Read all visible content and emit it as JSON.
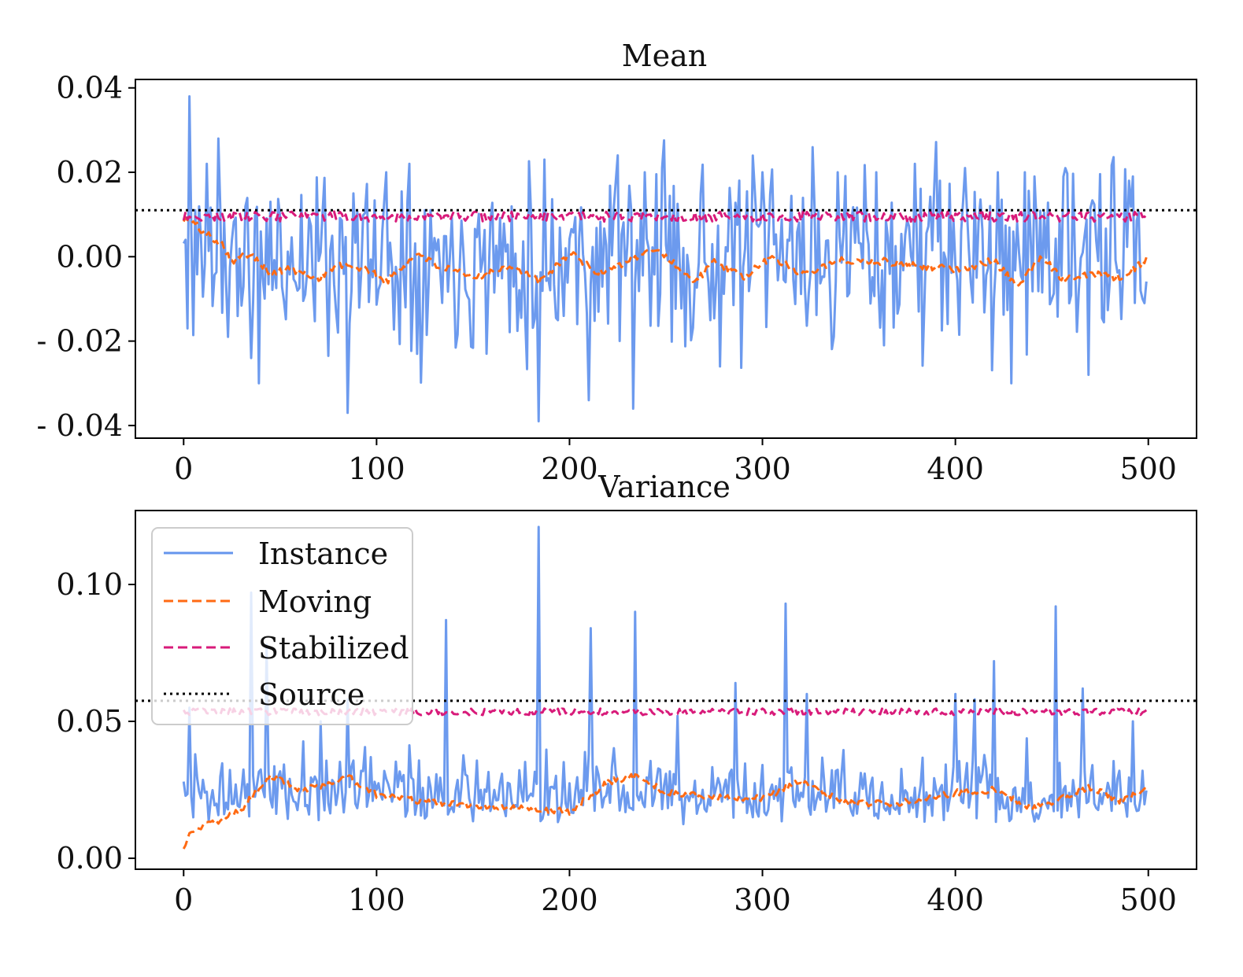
{
  "colors": {
    "instance": "#6495ed",
    "moving": "#ff6a13",
    "stabilized": "#d81b7a",
    "source": "#000000"
  },
  "legend": {
    "instance": "Instance",
    "moving": "Moving",
    "stabilized": "Stabilized",
    "source": "Source",
    "placement": "upper-left of Variance panel"
  },
  "chart_data": [
    {
      "type": "line",
      "title": "Mean",
      "xlim": [
        -25,
        525
      ],
      "ylim": [
        -0.043,
        0.042
      ],
      "xticks": [
        0,
        100,
        200,
        300,
        400,
        500
      ],
      "xtick_labels": [
        "0",
        "100",
        "200",
        "300",
        "400",
        "500"
      ],
      "yticks": [
        0.04,
        0.02,
        0.0,
        -0.02,
        -0.04
      ],
      "ytick_labels": [
        "0.04",
        "0.02",
        "0.00",
        "- 0.02",
        "- 0.04"
      ],
      "x_points": 500,
      "series": [
        {
          "name": "Instance",
          "style": "solid",
          "base": 0.0,
          "noise": 0.0105,
          "seed": 11,
          "spikes": [
            [
              1,
              0.004
            ],
            [
              2,
              -0.017
            ],
            [
              3,
              0.038
            ],
            [
              6,
              0.011
            ],
            [
              12,
              0.022
            ],
            [
              18,
              0.028
            ],
            [
              23,
              -0.019
            ],
            [
              35,
              -0.024
            ],
            [
              39,
              -0.03
            ],
            [
              85,
              -0.037
            ],
            [
              88,
              0.015
            ],
            [
              105,
              0.02
            ],
            [
              117,
              0.022
            ],
            [
              184,
              -0.039
            ],
            [
              187,
              0.023
            ],
            [
              210,
              -0.034
            ],
            [
              224,
              0.018
            ],
            [
              225,
              0.024
            ],
            [
              233,
              -0.036
            ],
            [
              239,
              0.02
            ],
            [
              248,
              0.021
            ],
            [
              278,
              -0.026
            ],
            [
              300,
              0.02
            ],
            [
              339,
              0.02
            ],
            [
              359,
              0.02
            ],
            [
              363,
              -0.021
            ],
            [
              379,
              0.022
            ],
            [
              392,
              0.018
            ],
            [
              405,
              0.021
            ],
            [
              422,
              0.02
            ],
            [
              429,
              -0.03
            ],
            [
              436,
              0.02
            ],
            [
              441,
              0.019
            ],
            [
              457,
              0.021
            ],
            [
              469,
              -0.028
            ],
            [
              490,
              0.018
            ],
            [
              492,
              0.019
            ],
            [
              497,
              -0.01
            ],
            [
              498,
              -0.011
            ]
          ]
        },
        {
          "name": "Moving",
          "style": "dashed",
          "anchors": [
            [
              0,
              0.009
            ],
            [
              5,
              0.008
            ],
            [
              10,
              0.006
            ],
            [
              20,
              0.003
            ],
            [
              25,
              -0.001
            ],
            [
              35,
              0.001
            ],
            [
              45,
              -0.004
            ],
            [
              55,
              -0.003
            ],
            [
              70,
              -0.005
            ],
            [
              80,
              -0.002
            ],
            [
              95,
              -0.003
            ],
            [
              105,
              -0.006
            ],
            [
              122,
              0.001
            ],
            [
              130,
              -0.002
            ],
            [
              150,
              -0.005
            ],
            [
              170,
              -0.002
            ],
            [
              185,
              -0.006
            ],
            [
              200,
              0.001
            ],
            [
              215,
              -0.004
            ],
            [
              230,
              -0.001
            ],
            [
              245,
              0.002
            ],
            [
              255,
              -0.002
            ],
            [
              265,
              -0.006
            ],
            [
              275,
              -0.001
            ],
            [
              290,
              -0.005
            ],
            [
              305,
              0.0
            ],
            [
              320,
              -0.004
            ],
            [
              340,
              -0.001
            ],
            [
              360,
              -0.001
            ],
            [
              380,
              -0.002
            ],
            [
              400,
              -0.003
            ],
            [
              420,
              -0.001
            ],
            [
              432,
              -0.007
            ],
            [
              445,
              0.0
            ],
            [
              455,
              -0.005
            ],
            [
              470,
              -0.004
            ],
            [
              485,
              -0.005
            ],
            [
              498,
              -0.001
            ]
          ],
          "jitter": 0.0009
        },
        {
          "name": "Stabilized",
          "style": "dashed",
          "base": 0.0095,
          "jitter": 0.0012
        },
        {
          "name": "Source",
          "style": "dotted",
          "value": 0.011
        }
      ]
    },
    {
      "type": "line",
      "title": "Variance",
      "xlim": [
        -25,
        525
      ],
      "ylim": [
        -0.004,
        0.127
      ],
      "xticks": [
        0,
        100,
        200,
        300,
        400,
        500
      ],
      "xtick_labels": [
        "0",
        "100",
        "200",
        "300",
        "400",
        "500"
      ],
      "yticks": [
        0.1,
        0.05,
        0.0
      ],
      "ytick_labels": [
        "0.10",
        "0.05",
        "0.00"
      ],
      "x_points": 500,
      "series": [
        {
          "name": "Instance",
          "style": "solid",
          "base": 0.02,
          "noise": 0.011,
          "seed": 29,
          "spikes": [
            [
              0,
              0.028
            ],
            [
              3,
              0.055
            ],
            [
              35,
              0.097
            ],
            [
              43,
              0.078
            ],
            [
              71,
              0.05
            ],
            [
              85,
              0.058
            ],
            [
              136,
              0.087
            ],
            [
              184,
              0.121
            ],
            [
              211,
              0.084
            ],
            [
              234,
              0.09
            ],
            [
              256,
              0.052
            ],
            [
              286,
              0.064
            ],
            [
              312,
              0.093
            ],
            [
              323,
              0.06
            ],
            [
              400,
              0.06
            ],
            [
              410,
              0.058
            ],
            [
              420,
              0.072
            ],
            [
              452,
              0.092
            ],
            [
              466,
              0.062
            ],
            [
              492,
              0.05
            ]
          ]
        },
        {
          "name": "Moving",
          "style": "dashed",
          "anchors": [
            [
              0,
              0.003
            ],
            [
              3,
              0.008
            ],
            [
              10,
              0.012
            ],
            [
              20,
              0.014
            ],
            [
              30,
              0.018
            ],
            [
              45,
              0.03
            ],
            [
              60,
              0.025
            ],
            [
              75,
              0.027
            ],
            [
              85,
              0.03
            ],
            [
              100,
              0.023
            ],
            [
              120,
              0.021
            ],
            [
              140,
              0.02
            ],
            [
              160,
              0.019
            ],
            [
              180,
              0.018
            ],
            [
              200,
              0.017
            ],
            [
              220,
              0.028
            ],
            [
              235,
              0.03
            ],
            [
              250,
              0.024
            ],
            [
              280,
              0.022
            ],
            [
              300,
              0.022
            ],
            [
              320,
              0.028
            ],
            [
              345,
              0.02
            ],
            [
              370,
              0.02
            ],
            [
              400,
              0.024
            ],
            [
              420,
              0.025
            ],
            [
              440,
              0.018
            ],
            [
              455,
              0.022
            ],
            [
              470,
              0.026
            ],
            [
              485,
              0.021
            ],
            [
              498,
              0.025
            ]
          ],
          "jitter": 0.0012
        },
        {
          "name": "Stabilized",
          "style": "dashed",
          "base": 0.0535,
          "jitter": 0.0012
        },
        {
          "name": "Source",
          "style": "dotted",
          "value": 0.0575
        }
      ]
    }
  ]
}
